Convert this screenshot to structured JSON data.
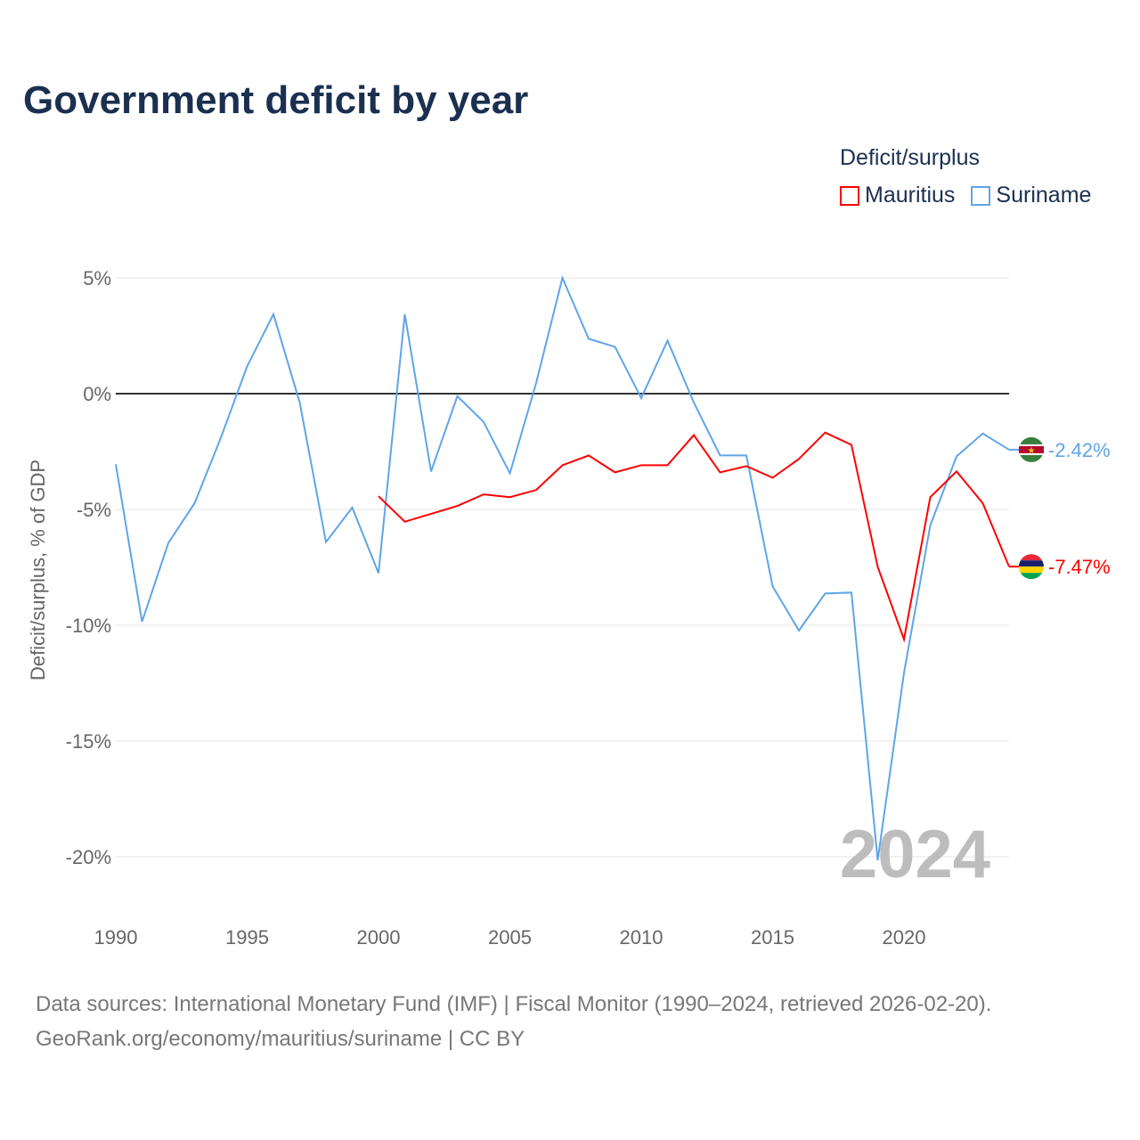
{
  "title": "Government deficit by year",
  "legend": {
    "title": "Deficit/surplus",
    "items": [
      {
        "label": "Mauritius",
        "color": "#ff0000"
      },
      {
        "label": "Suriname",
        "color": "#5fa5e8"
      }
    ]
  },
  "source": {
    "line1": "Data sources: International Monetary Fund (IMF) | Fiscal Monitor (1990–2024, retrieved 2026-02-20).",
    "line2": "GeoRank.org/economy/mauritius/suriname | CC BY"
  },
  "chart_data": {
    "type": "line",
    "title": "Government deficit by year",
    "ylabel": "Deficit/surplus, % of GDP",
    "xlabel": "",
    "xlim": [
      1990,
      2024
    ],
    "ylim": [
      -20,
      5
    ],
    "yticks": [
      5,
      0,
      -5,
      -10,
      -15,
      -20
    ],
    "ytick_labels": [
      "5%",
      "0%",
      "-5%",
      "-10%",
      "-15%",
      "-20%"
    ],
    "xticks": [
      1990,
      1995,
      2000,
      2005,
      2010,
      2015,
      2020
    ],
    "xtick_labels": [
      "1990",
      "1995",
      "2000",
      "2005",
      "2010",
      "2015",
      "2020"
    ],
    "year_watermark": "2024",
    "series": [
      {
        "name": "Suriname",
        "color": "#5fa5e8",
        "end_label": "-2.42%",
        "x": [
          1990,
          1991,
          1992,
          1993,
          1994,
          1995,
          1996,
          1997,
          1998,
          1999,
          2000,
          2001,
          2002,
          2003,
          2004,
          2005,
          2006,
          2007,
          2008,
          2009,
          2010,
          2011,
          2012,
          2013,
          2014,
          2015,
          2016,
          2017,
          2018,
          2019,
          2020,
          2021,
          2022,
          2023,
          2024
        ],
        "values": [
          -3.05,
          -9.85,
          -6.45,
          -4.73,
          -1.9,
          1.18,
          3.43,
          -0.38,
          -6.41,
          -4.92,
          -7.75,
          3.43,
          -3.36,
          -0.11,
          -1.22,
          -3.44,
          0.46,
          5.0,
          2.37,
          2.02,
          -0.19,
          2.29,
          -0.38,
          -2.67,
          -2.67,
          -8.32,
          -10.23,
          -8.63,
          -8.59,
          -20.15,
          -12.06,
          -5.69,
          -2.71,
          -1.72,
          -2.42
        ]
      },
      {
        "name": "Mauritius",
        "color": "#ff0000",
        "end_label": "-7.47%",
        "x": [
          2000,
          2001,
          2002,
          2003,
          2004,
          2005,
          2006,
          2007,
          2008,
          2009,
          2010,
          2011,
          2012,
          2013,
          2014,
          2015,
          2016,
          2017,
          2018,
          2019,
          2020,
          2021,
          2022,
          2023,
          2024
        ],
        "values": [
          -4.43,
          -5.53,
          -5.19,
          -4.85,
          -4.35,
          -4.47,
          -4.16,
          -3.09,
          -2.67,
          -3.4,
          -3.09,
          -3.09,
          -1.79,
          -3.4,
          -3.13,
          -3.63,
          -2.82,
          -1.68,
          -2.21,
          -7.48,
          -10.61,
          -4.47,
          -3.36,
          -4.73,
          -7.47
        ]
      }
    ]
  }
}
